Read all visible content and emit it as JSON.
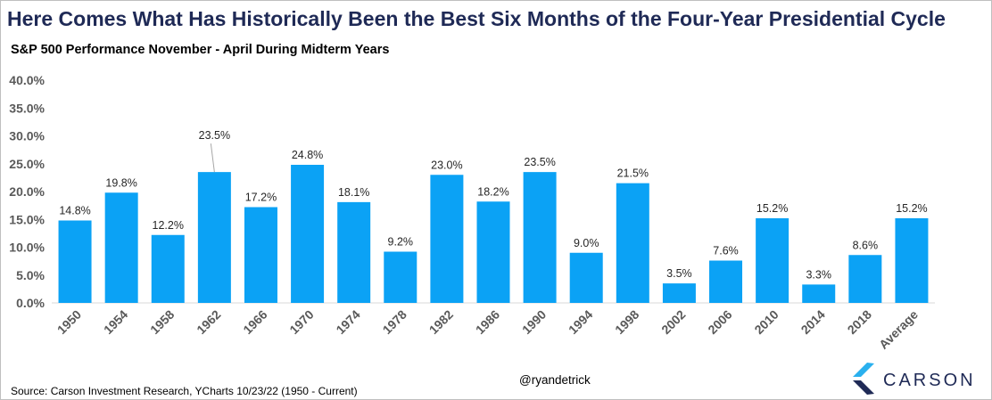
{
  "header": {
    "title": "Here Comes What Has Historically Been the Best Six Months of the Four-Year Presidential Cycle",
    "subtitle": "S&P 500 Performance November - April During Midterm Years"
  },
  "footer": {
    "source": "Source: Carson Investment Research, YCharts 10/23/22 (1950 - Current)",
    "handle": "@ryandetrick",
    "brand": "CARSON"
  },
  "colors": {
    "bar": "#0ba2f5",
    "title": "#1f2a56",
    "logo_light": "#2ab0ee",
    "logo_dark": "#1f2a56"
  },
  "chart_data": {
    "type": "bar",
    "categories": [
      "1950",
      "1954",
      "1958",
      "1962",
      "1966",
      "1970",
      "1974",
      "1978",
      "1982",
      "1986",
      "1990",
      "1994",
      "1998",
      "2002",
      "2006",
      "2010",
      "2014",
      "2018",
      "Average"
    ],
    "values": [
      14.8,
      19.8,
      12.2,
      23.5,
      17.2,
      24.8,
      18.1,
      9.2,
      23.0,
      18.2,
      23.5,
      9.0,
      21.5,
      3.5,
      7.6,
      15.2,
      3.3,
      8.6,
      15.2
    ],
    "data_labels": [
      "14.8%",
      "19.8%",
      "12.2%",
      "23.5%",
      "17.2%",
      "24.8%",
      "18.1%",
      "9.2%",
      "23.0%",
      "18.2%",
      "23.5%",
      "9.0%",
      "21.5%",
      "3.5%",
      "7.6%",
      "15.2%",
      "3.3%",
      "8.6%",
      "15.2%"
    ],
    "title": "S&P 500 Performance November - April During Midterm Years",
    "xlabel": "",
    "ylabel": "",
    "ylim": [
      0,
      40
    ],
    "yticks": [
      "0.0%",
      "5.0%",
      "10.0%",
      "15.0%",
      "20.0%",
      "25.0%",
      "30.0%",
      "35.0%",
      "40.0%"
    ],
    "grid": false,
    "legend": "none"
  }
}
